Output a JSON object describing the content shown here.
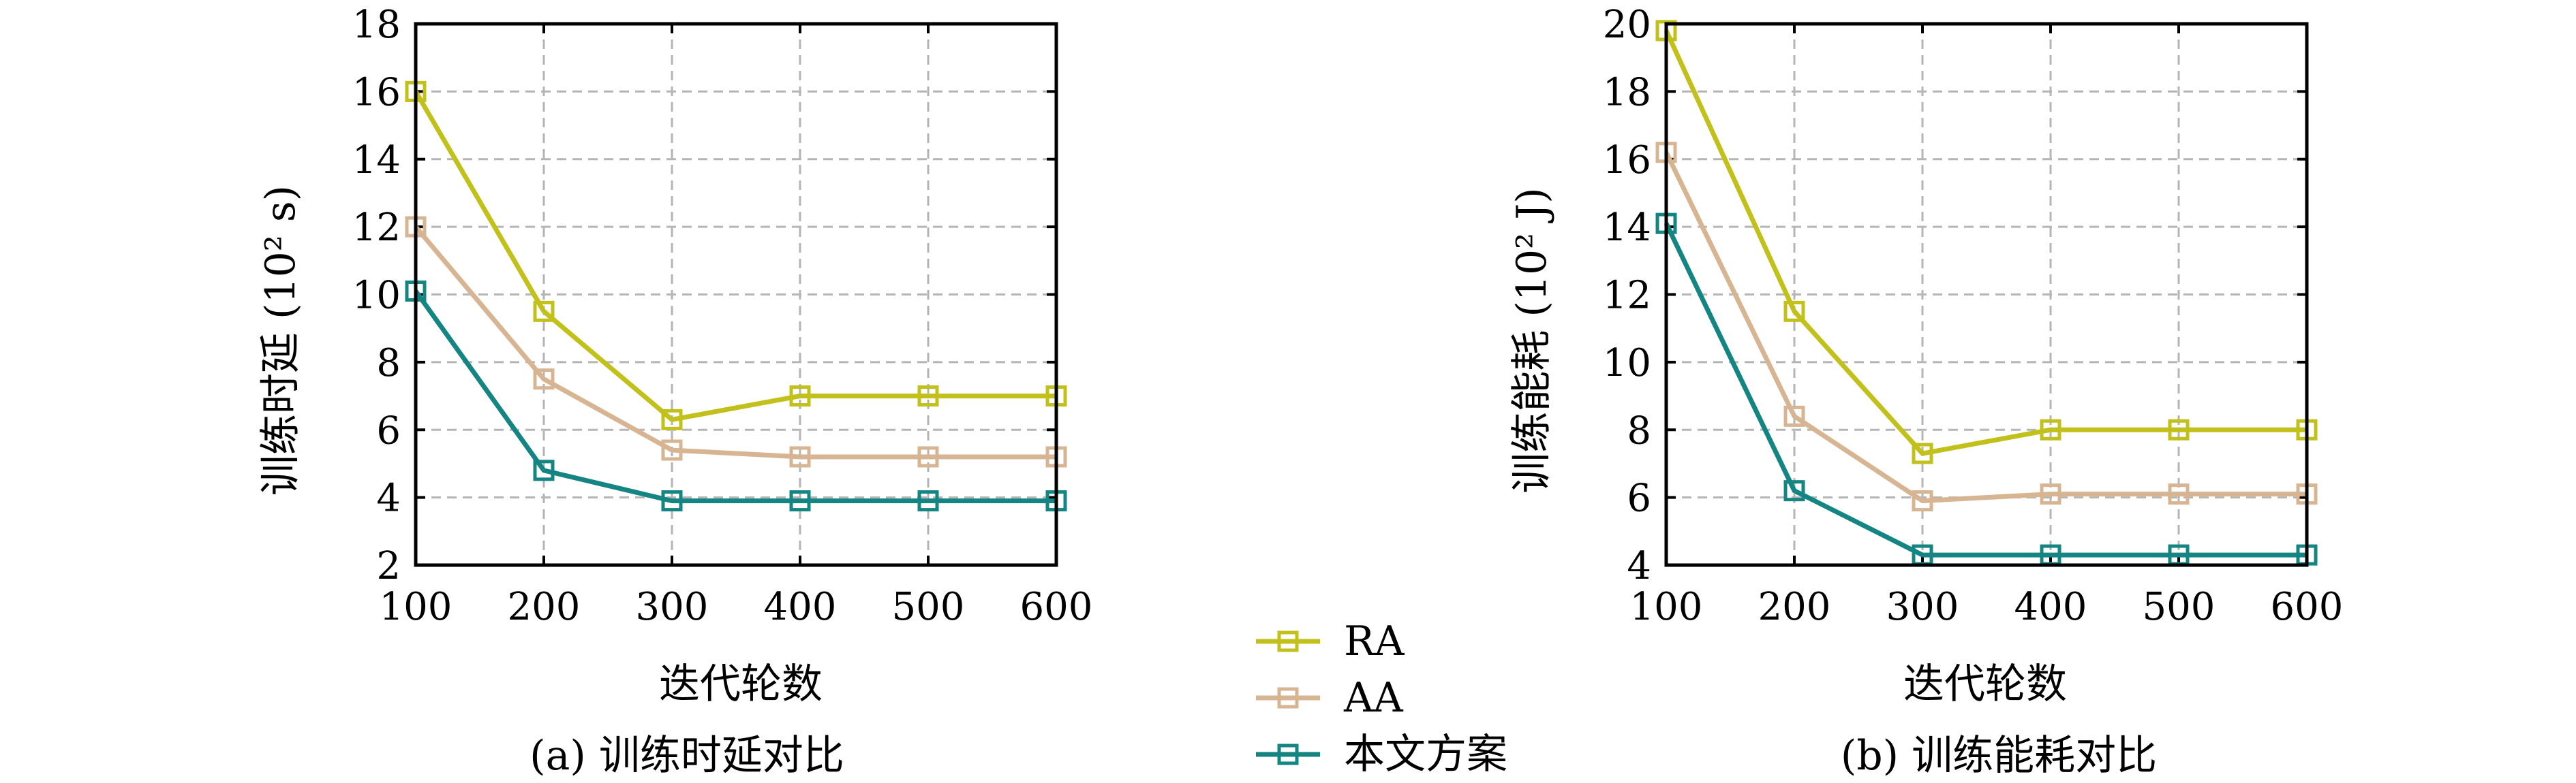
{
  "chart_data": [
    {
      "type": "line",
      "caption": "(a) 训练时延对比",
      "xlabel": "迭代轮数",
      "ylabel": "训练时延 (10² s)",
      "x": [
        100,
        200,
        300,
        400,
        500,
        600
      ],
      "xticks": [
        "100",
        "200",
        "300",
        "400",
        "500",
        "600"
      ],
      "ylim": [
        2,
        18
      ],
      "yticks": [
        "2",
        "4",
        "6",
        "8",
        "10",
        "12",
        "14",
        "16",
        "18"
      ],
      "grid": true,
      "series": [
        {
          "name": "RA",
          "color": "#c2c01a",
          "values": [
            16.0,
            9.5,
            6.3,
            7.0,
            7.0,
            7.0
          ]
        },
        {
          "name": "AA",
          "color": "#d7b593",
          "values": [
            12.0,
            7.5,
            5.4,
            5.2,
            5.2,
            5.2
          ]
        },
        {
          "name": "本文方案",
          "color": "#148582",
          "values": [
            10.1,
            4.8,
            3.9,
            3.9,
            3.9,
            3.9
          ]
        }
      ]
    },
    {
      "type": "line",
      "caption": "(b) 训练能耗对比",
      "xlabel": "迭代轮数",
      "ylabel": "训练能耗 (10² J)",
      "x": [
        100,
        200,
        300,
        400,
        500,
        600
      ],
      "xticks": [
        "100",
        "200",
        "300",
        "400",
        "500",
        "600"
      ],
      "ylim": [
        4,
        20
      ],
      "yticks": [
        "4",
        "6",
        "8",
        "10",
        "12",
        "14",
        "16",
        "18",
        "20"
      ],
      "grid": true,
      "series": [
        {
          "name": "RA",
          "color": "#c2c01a",
          "values": [
            19.8,
            11.5,
            7.3,
            8.0,
            8.0,
            8.0
          ]
        },
        {
          "name": "AA",
          "color": "#d7b593",
          "values": [
            16.2,
            8.4,
            5.9,
            6.1,
            6.1,
            6.1
          ]
        },
        {
          "name": "本文方案",
          "color": "#148582",
          "values": [
            14.1,
            6.2,
            4.3,
            4.3,
            4.3,
            4.3
          ]
        }
      ]
    }
  ],
  "legend": {
    "placement": "bottom-center",
    "items": [
      {
        "name": "RA",
        "color": "#c2c01a"
      },
      {
        "name": "AA",
        "color": "#d7b593"
      },
      {
        "name": "本文方案",
        "color": "#148582"
      }
    ]
  }
}
